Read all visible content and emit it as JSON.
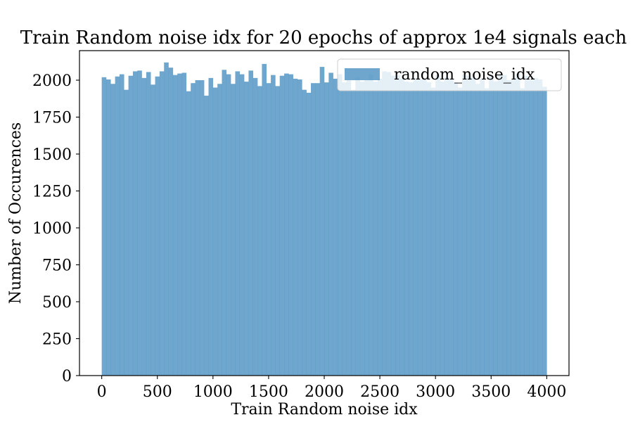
{
  "chart_data": {
    "type": "bar",
    "title": "Train Random noise idx for 20 epochs of approx 1e4 signals each",
    "xlabel": "Train Random noise idx",
    "ylabel": "Number of Occurences",
    "xlim": [
      -200,
      4200
    ],
    "ylim": [
      0,
      2200
    ],
    "xticks": [
      "0",
      "500",
      "1000",
      "1500",
      "2000",
      "2500",
      "3000",
      "3500",
      "4000"
    ],
    "yticks": [
      "0",
      "250",
      "500",
      "750",
      "1000",
      "1250",
      "1500",
      "1750",
      "2000"
    ],
    "grid": false,
    "legend_position": "top-right",
    "series": [
      {
        "name": "random_noise_idx",
        "color": "#4a90c2",
        "alpha": 0.8,
        "bin_start": 0,
        "bin_width": 40,
        "values": [
          2020,
          2005,
          1975,
          2025,
          2040,
          1935,
          2030,
          2060,
          2065,
          2015,
          2055,
          1970,
          2025,
          2060,
          2120,
          2085,
          2035,
          2045,
          2050,
          1925,
          1980,
          2000,
          2000,
          1895,
          2015,
          1950,
          1975,
          2070,
          2040,
          1975,
          2060,
          2040,
          1990,
          2065,
          2015,
          1960,
          2110,
          1980,
          2035,
          1960,
          2030,
          2045,
          2040,
          2010,
          2005,
          1935,
          1915,
          1980,
          1980,
          2090,
          1985,
          2050,
          2010,
          2040,
          1985,
          2000,
          1935,
          2020,
          1990,
          2000,
          2040,
          1990,
          2010,
          2060,
          2055,
          2030,
          2035,
          2010,
          1990,
          1985,
          2015,
          2005,
          2010,
          1985,
          1950,
          2035,
          1990,
          2020,
          2005,
          1985,
          1950,
          2040,
          2030,
          2020,
          1975,
          2010,
          1945,
          2025,
          1990,
          2040,
          2035,
          2000,
          2005,
          2045,
          1945,
          2030,
          2000,
          2015,
          2005,
          1955
        ]
      }
    ]
  }
}
